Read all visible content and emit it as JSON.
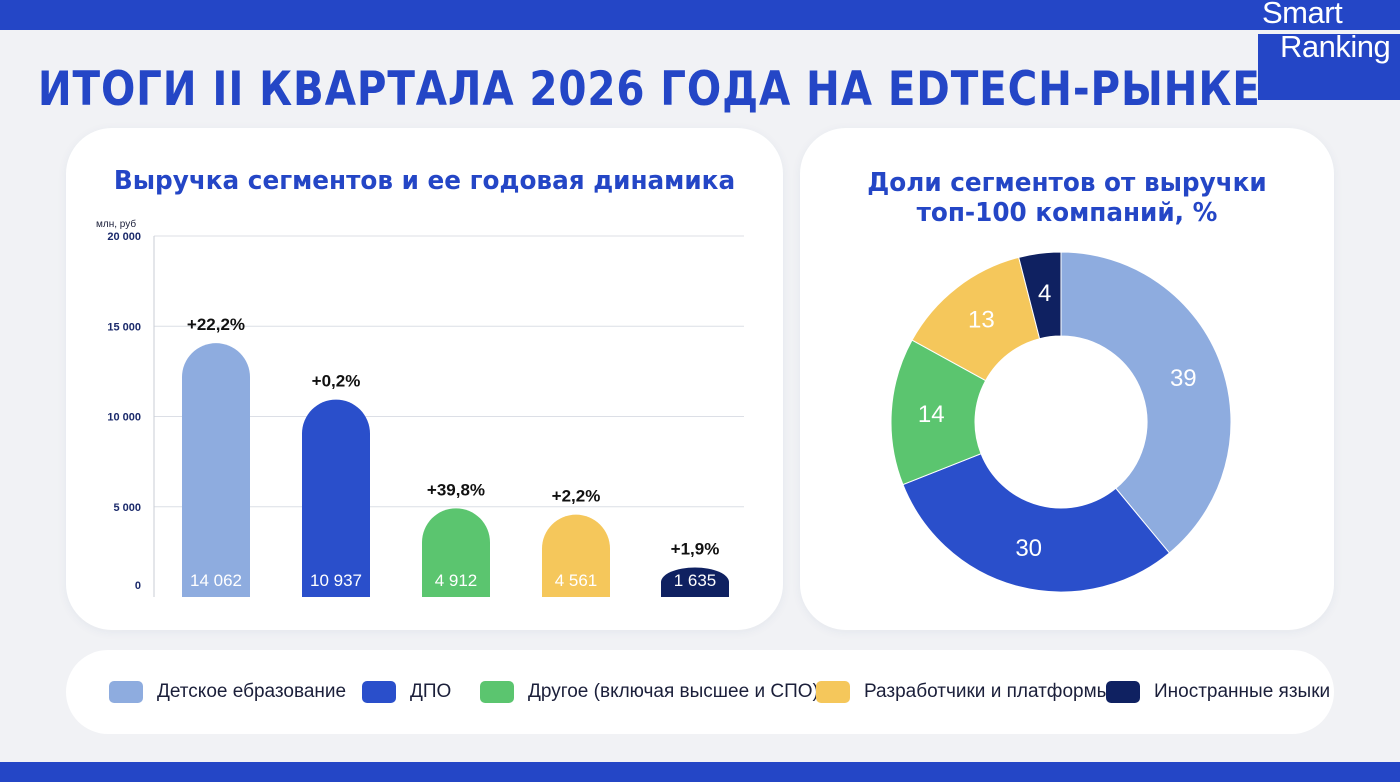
{
  "brand": {
    "line1": "Smart",
    "line2": "Ranking"
  },
  "title": "ИТОГИ II КВАРТАЛА 2026 ГОДА НА EDTECH-РЫНКЕ",
  "colors": {
    "brand": "#2446c6",
    "kids": "#8eacdf",
    "dpo": "#2a4fcb",
    "other": "#5bc56f",
    "developers": "#f5c75b",
    "languages": "#0f2161"
  },
  "legend": [
    {
      "label": "Детское ебразование",
      "color": "#8eacdf"
    },
    {
      "label": "ДПО",
      "color": "#2a4fcb"
    },
    {
      "label": "Другое (включая высшее и СПО)",
      "color": "#5bc56f"
    },
    {
      "label": "Разработчики и платформы",
      "color": "#f5c75b"
    },
    {
      "label": "Иностранные языки",
      "color": "#0f2161"
    }
  ],
  "chart_data": [
    {
      "type": "bar",
      "title": "Выручка сегментов и ее годовая динамика",
      "ylabel": "млн, руб",
      "ylim": [
        0,
        20000
      ],
      "yticks": [
        0,
        5000,
        10000,
        15000,
        20000
      ],
      "ytick_labels": [
        "0",
        "5 000",
        "10 000",
        "15 000",
        "20 000"
      ],
      "grid": true,
      "categories": [
        "Детское ебразование",
        "ДПО",
        "Другое (включая высшее и СПО)",
        "Разработчики и платформы",
        "Иностранные языки"
      ],
      "values": [
        14062,
        10937,
        4912,
        4561,
        1635
      ],
      "value_labels": [
        "14 062",
        "10 937",
        "4 912",
        "4 561",
        "1 635"
      ],
      "growth_labels": [
        "+22,2%",
        "+0,2%",
        "+39,8%",
        "+2,2%",
        "+1,9%"
      ],
      "colors": [
        "#8eacdf",
        "#2a4fcb",
        "#5bc56f",
        "#f5c75b",
        "#0f2161"
      ]
    },
    {
      "type": "pie",
      "title_lines": [
        "Доли сегментов от выручки",
        "топ-100 компаний, %"
      ],
      "categories": [
        "Детское ебразование",
        "ДПО",
        "Другое (включая высшее и СПО)",
        "Разработчики и платформы",
        "Иностранные языки"
      ],
      "values": [
        39,
        30,
        14,
        13,
        4
      ],
      "labels": [
        "39",
        "30",
        "14",
        "13",
        "4"
      ],
      "colors": [
        "#8eacdf",
        "#2a4fcb",
        "#5bc56f",
        "#f5c75b",
        "#0f2161"
      ]
    }
  ]
}
